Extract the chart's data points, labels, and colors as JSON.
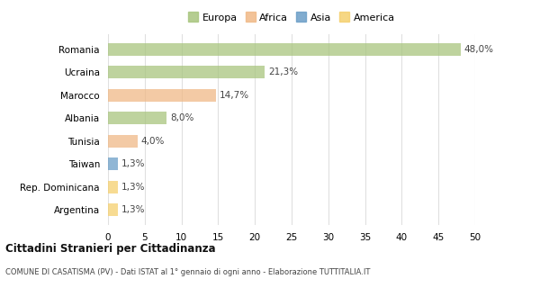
{
  "categories": [
    "Romania",
    "Ucraina",
    "Marocco",
    "Albania",
    "Tunisia",
    "Taiwan",
    "Rep. Dominicana",
    "Argentina"
  ],
  "values": [
    48.0,
    21.3,
    14.7,
    8.0,
    4.0,
    1.3,
    1.3,
    1.3
  ],
  "labels": [
    "48,0%",
    "21,3%",
    "14,7%",
    "8,0%",
    "4,0%",
    "1,3%",
    "1,3%",
    "1,3%"
  ],
  "colors": [
    "#a8c57e",
    "#a8c57e",
    "#f0b987",
    "#a8c57e",
    "#f0b987",
    "#6b9ec7",
    "#f5d06e",
    "#f5d06e"
  ],
  "legend_labels": [
    "Europa",
    "Africa",
    "Asia",
    "America"
  ],
  "legend_colors": [
    "#a8c57e",
    "#f0b987",
    "#6b9ec7",
    "#f5d06e"
  ],
  "xlim": [
    0,
    50
  ],
  "xticks": [
    0,
    5,
    10,
    15,
    20,
    25,
    30,
    35,
    40,
    45,
    50
  ],
  "title_main": "Cittadini Stranieri per Cittadinanza",
  "title_sub": "COMUNE DI CASATISMA (PV) - Dati ISTAT al 1° gennaio di ogni anno - Elaborazione TUTTITALIA.IT",
  "background_color": "#ffffff",
  "bar_alpha": 0.75,
  "bar_height": 0.55
}
